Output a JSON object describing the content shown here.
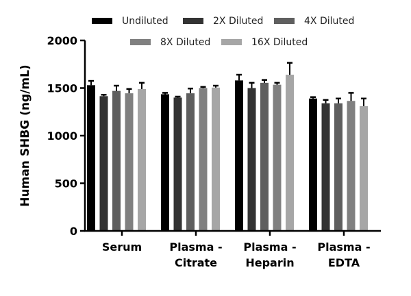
{
  "chart_data": {
    "type": "bar",
    "title": "",
    "xlabel": "",
    "ylabel": "Human SHBG (ng/mL)",
    "ylim": [
      0,
      2000
    ],
    "yticks": [
      "0",
      "500",
      "1000",
      "1500",
      "2000"
    ],
    "grid": false,
    "legend_placement": "top",
    "categories": [
      {
        "line1": "Serum",
        "line2": ""
      },
      {
        "line1": "Plasma -",
        "line2": "Citrate"
      },
      {
        "line1": "Plasma -",
        "line2": "Heparin"
      },
      {
        "line1": "Plasma -",
        "line2": "EDTA"
      }
    ],
    "series": [
      {
        "name": "Undiluted",
        "color": "#000000",
        "values": [
          1530,
          1435,
          1580,
          1390
        ],
        "error": [
          45,
          15,
          60,
          15
        ]
      },
      {
        "name": "2X Diluted",
        "color": "#333333",
        "values": [
          1415,
          1400,
          1500,
          1340
        ],
        "error": [
          15,
          10,
          55,
          35
        ]
      },
      {
        "name": "4X Diluted",
        "color": "#5f5f5f",
        "values": [
          1470,
          1445,
          1555,
          1340
        ],
        "error": [
          55,
          50,
          30,
          50
        ]
      },
      {
        "name": "8X Diluted",
        "color": "#808080",
        "values": [
          1445,
          1500,
          1535,
          1365
        ],
        "error": [
          45,
          12,
          20,
          85
        ]
      },
      {
        "name": "16X Diluted",
        "color": "#a6a6a6",
        "values": [
          1490,
          1505,
          1640,
          1310
        ],
        "error": [
          65,
          20,
          125,
          80
        ]
      }
    ]
  }
}
